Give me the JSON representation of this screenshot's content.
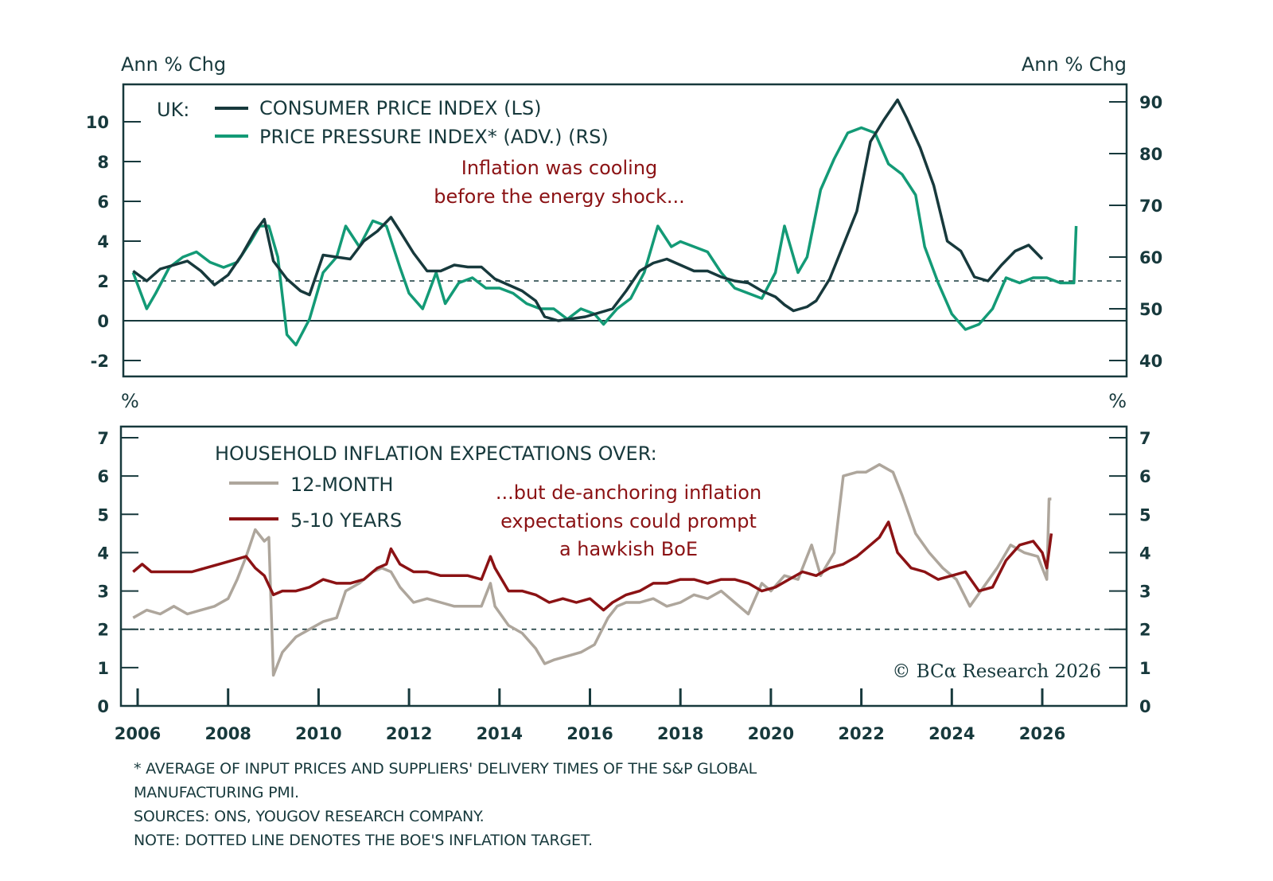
{
  "chart_data": [
    {
      "type": "line",
      "panel": "top",
      "left_axis_title": "Ann % Chg",
      "right_axis_title": "Ann % Chg",
      "left_ylim": [
        -3,
        11.5
      ],
      "right_ylim": [
        37,
        92
      ],
      "left_ticks": [
        -2,
        0,
        2,
        4,
        6,
        8,
        10
      ],
      "right_ticks": [
        40,
        50,
        60,
        70,
        80,
        90
      ],
      "reference_line": {
        "value": 2,
        "style": "dashed",
        "axis": "left"
      },
      "zero_line": {
        "value": 0,
        "axis": "left"
      },
      "legend_prefix": "UK:",
      "series": [
        {
          "name": "CONSUMER PRICE INDEX (LS)",
          "axis": "left",
          "color": "#17393c",
          "x": [
            2005.9,
            2006.2,
            2006.5,
            2006.8,
            2007.1,
            2007.4,
            2007.7,
            2008.0,
            2008.3,
            2008.6,
            2008.8,
            2009.0,
            2009.3,
            2009.6,
            2009.8,
            2010.1,
            2010.4,
            2010.7,
            2011.0,
            2011.3,
            2011.6,
            2011.8,
            2012.1,
            2012.4,
            2012.7,
            2013.0,
            2013.3,
            2013.6,
            2013.9,
            2014.2,
            2014.5,
            2014.8,
            2015.0,
            2015.3,
            2015.6,
            2015.9,
            2016.2,
            2016.5,
            2016.8,
            2017.1,
            2017.4,
            2017.7,
            2018.0,
            2018.3,
            2018.6,
            2018.9,
            2019.2,
            2019.5,
            2019.8,
            2020.1,
            2020.3,
            2020.5,
            2020.8,
            2021.0,
            2021.3,
            2021.6,
            2021.9,
            2022.2,
            2022.5,
            2022.8,
            2023.0,
            2023.3,
            2023.6,
            2023.9,
            2024.2,
            2024.5,
            2024.8,
            2025.1,
            2025.4,
            2025.7,
            2026.0
          ],
          "y": [
            2.5,
            2.0,
            2.6,
            2.8,
            3.0,
            2.5,
            1.8,
            2.3,
            3.3,
            4.5,
            5.1,
            3.0,
            2.1,
            1.5,
            1.3,
            3.3,
            3.2,
            3.1,
            4.0,
            4.5,
            5.2,
            4.5,
            3.4,
            2.5,
            2.5,
            2.8,
            2.7,
            2.7,
            2.1,
            1.8,
            1.5,
            1.0,
            0.2,
            0.0,
            0.1,
            0.2,
            0.4,
            0.6,
            1.5,
            2.5,
            2.9,
            3.1,
            2.8,
            2.5,
            2.5,
            2.2,
            2.0,
            1.9,
            1.5,
            1.2,
            0.8,
            0.5,
            0.7,
            1.0,
            2.1,
            3.8,
            5.5,
            9.0,
            10.1,
            11.1,
            10.2,
            8.7,
            6.8,
            4.0,
            3.5,
            2.2,
            2.0,
            2.8,
            3.5,
            3.8,
            3.1
          ]
        },
        {
          "name": "PRICE PRESSURE INDEX* (ADV.) (RS)",
          "axis": "right",
          "color": "#139a76",
          "x": [
            2005.9,
            2006.2,
            2006.4,
            2006.7,
            2007.0,
            2007.3,
            2007.6,
            2007.9,
            2008.2,
            2008.5,
            2008.7,
            2008.9,
            2009.1,
            2009.3,
            2009.5,
            2009.8,
            2010.1,
            2010.4,
            2010.6,
            2010.9,
            2011.2,
            2011.5,
            2011.8,
            2012.0,
            2012.3,
            2012.6,
            2012.8,
            2013.1,
            2013.4,
            2013.7,
            2014.0,
            2014.3,
            2014.6,
            2014.9,
            2015.2,
            2015.5,
            2015.8,
            2016.1,
            2016.3,
            2016.6,
            2016.9,
            2017.2,
            2017.5,
            2017.8,
            2018.0,
            2018.3,
            2018.6,
            2018.9,
            2019.2,
            2019.5,
            2019.8,
            2020.1,
            2020.3,
            2020.6,
            2020.8,
            2021.1,
            2021.4,
            2021.7,
            2022.0,
            2022.3,
            2022.6,
            2022.9,
            2023.2,
            2023.4,
            2023.7,
            2024.0,
            2024.3,
            2024.6,
            2024.9,
            2025.2,
            2025.5,
            2025.8,
            2026.1,
            2026.4,
            2026.7,
            2026.75
          ],
          "y": [
            57,
            50,
            53,
            58,
            60,
            61,
            59,
            58,
            59,
            63,
            66,
            66,
            60,
            45,
            43,
            48,
            57,
            60,
            66,
            62,
            67,
            66,
            58,
            53,
            50,
            57,
            51,
            55,
            56,
            54,
            54,
            53,
            51,
            50,
            50,
            48,
            50,
            49,
            47,
            50,
            52,
            57,
            66,
            62,
            63,
            62,
            61,
            57,
            54,
            53,
            52,
            57,
            66,
            57,
            60,
            73,
            79,
            84,
            85,
            84,
            78,
            76,
            72,
            62,
            55,
            49,
            46,
            47,
            50,
            56,
            55,
            56,
            56,
            55,
            55,
            66
          ]
        }
      ],
      "annotation": [
        "Inflation was cooling",
        "before the energy shock..."
      ]
    },
    {
      "type": "line",
      "panel": "bottom",
      "left_axis_title": "%",
      "right_axis_title": "%",
      "ylim": [
        0,
        7.3
      ],
      "ticks": [
        0,
        1,
        2,
        3,
        4,
        5,
        6,
        7
      ],
      "reference_line": {
        "value": 2,
        "style": "dashed"
      },
      "legend_title": "HOUSEHOLD INFLATION EXPECTATIONS OVER:",
      "series": [
        {
          "name": "12-MONTH",
          "color": "#aea69c",
          "x": [
            2005.9,
            2006.2,
            2006.5,
            2006.8,
            2007.1,
            2007.4,
            2007.7,
            2008.0,
            2008.2,
            2008.4,
            2008.6,
            2008.8,
            2008.9,
            2009.0,
            2009.2,
            2009.5,
            2009.8,
            2010.1,
            2010.4,
            2010.6,
            2010.9,
            2011.2,
            2011.4,
            2011.6,
            2011.8,
            2012.1,
            2012.4,
            2012.7,
            2013.0,
            2013.3,
            2013.6,
            2013.8,
            2013.9,
            2014.2,
            2014.5,
            2014.8,
            2015.0,
            2015.2,
            2015.5,
            2015.8,
            2016.1,
            2016.4,
            2016.6,
            2016.8,
            2017.1,
            2017.4,
            2017.7,
            2018.0,
            2018.3,
            2018.6,
            2018.9,
            2019.2,
            2019.5,
            2019.8,
            2020.0,
            2020.3,
            2020.6,
            2020.9,
            2021.1,
            2021.4,
            2021.6,
            2021.9,
            2022.1,
            2022.4,
            2022.7,
            2022.9,
            2023.2,
            2023.5,
            2023.8,
            2024.1,
            2024.4,
            2024.7,
            2025.0,
            2025.3,
            2025.6,
            2025.9,
            2026.1,
            2026.15,
            2026.2
          ],
          "y": [
            2.3,
            2.5,
            2.4,
            2.6,
            2.4,
            2.5,
            2.6,
            2.8,
            3.3,
            3.9,
            4.6,
            4.3,
            4.4,
            0.8,
            1.4,
            1.8,
            2.0,
            2.2,
            2.3,
            3.0,
            3.2,
            3.5,
            3.6,
            3.5,
            3.1,
            2.7,
            2.8,
            2.7,
            2.6,
            2.6,
            2.6,
            3.2,
            2.6,
            2.1,
            1.9,
            1.5,
            1.1,
            1.2,
            1.3,
            1.4,
            1.6,
            2.3,
            2.6,
            2.7,
            2.7,
            2.8,
            2.6,
            2.7,
            2.9,
            2.8,
            3.0,
            2.7,
            2.4,
            3.2,
            3.0,
            3.4,
            3.3,
            4.2,
            3.4,
            4.0,
            6.0,
            6.1,
            6.1,
            6.3,
            6.1,
            5.5,
            4.5,
            4.0,
            3.6,
            3.3,
            2.6,
            3.1,
            3.6,
            4.2,
            4.0,
            3.9,
            3.3,
            5.4,
            5.4
          ]
        },
        {
          "name": "5-10 YEARS",
          "color": "#8b1214",
          "x": [
            2005.9,
            2006.1,
            2006.3,
            2006.6,
            2006.9,
            2007.2,
            2007.5,
            2007.8,
            2008.1,
            2008.4,
            2008.6,
            2008.8,
            2009.0,
            2009.2,
            2009.5,
            2009.8,
            2010.1,
            2010.4,
            2010.7,
            2011.0,
            2011.3,
            2011.5,
            2011.6,
            2011.8,
            2012.1,
            2012.4,
            2012.7,
            2013.0,
            2013.3,
            2013.6,
            2013.8,
            2013.9,
            2014.2,
            2014.5,
            2014.8,
            2015.1,
            2015.4,
            2015.7,
            2016.0,
            2016.3,
            2016.5,
            2016.8,
            2017.1,
            2017.4,
            2017.7,
            2018.0,
            2018.3,
            2018.6,
            2018.9,
            2019.2,
            2019.5,
            2019.8,
            2020.1,
            2020.4,
            2020.7,
            2021.0,
            2021.3,
            2021.6,
            2021.9,
            2022.2,
            2022.4,
            2022.6,
            2022.8,
            2023.1,
            2023.4,
            2023.7,
            2024.0,
            2024.3,
            2024.6,
            2024.9,
            2025.2,
            2025.5,
            2025.8,
            2026.0,
            2026.1,
            2026.2
          ],
          "y": [
            3.5,
            3.7,
            3.5,
            3.5,
            3.5,
            3.5,
            3.6,
            3.7,
            3.8,
            3.9,
            3.6,
            3.4,
            2.9,
            3.0,
            3.0,
            3.1,
            3.3,
            3.2,
            3.2,
            3.3,
            3.6,
            3.7,
            4.1,
            3.7,
            3.5,
            3.5,
            3.4,
            3.4,
            3.4,
            3.3,
            3.9,
            3.6,
            3.0,
            3.0,
            2.9,
            2.7,
            2.8,
            2.7,
            2.8,
            2.5,
            2.7,
            2.9,
            3.0,
            3.2,
            3.2,
            3.3,
            3.3,
            3.2,
            3.3,
            3.3,
            3.2,
            3.0,
            3.1,
            3.3,
            3.5,
            3.4,
            3.6,
            3.7,
            3.9,
            4.2,
            4.4,
            4.8,
            4.0,
            3.6,
            3.5,
            3.3,
            3.4,
            3.5,
            3.0,
            3.1,
            3.8,
            4.2,
            4.3,
            4.0,
            3.6,
            4.5
          ]
        }
      ],
      "annotation": [
        "...but de-anchoring inflation",
        "expectations could prompt",
        "a hawkish BoE"
      ]
    }
  ],
  "x_axis": {
    "range": [
      2005.6,
      2027.8
    ],
    "ticks": [
      "2006",
      "2008",
      "2010",
      "2012",
      "2014",
      "2016",
      "2018",
      "2020",
      "2022",
      "2024",
      "2026"
    ]
  },
  "top": {
    "left_title": "Ann % Chg",
    "right_title": "Ann % Chg",
    "legend_prefix": "UK:",
    "legend_cpi": "CONSUMER PRICE INDEX (LS)",
    "legend_ppi": "PRICE PRESSURE INDEX* (ADV.) (RS)",
    "annotation_line1": "Inflation was cooling",
    "annotation_line2": "before the energy shock..."
  },
  "bottom": {
    "left_title": "%",
    "right_title": "%",
    "legend_title": "HOUSEHOLD INFLATION EXPECTATIONS OVER:",
    "legend_12m": "12-MONTH",
    "legend_5_10y": "5-10 YEARS",
    "annotation_line1": "...but de-anchoring inflation",
    "annotation_line2": "expectations could prompt",
    "annotation_line3": "a hawkish BoE",
    "copyright": "© BCα Research 2026"
  },
  "footnotes": {
    "line1": "* AVERAGE OF INPUT PRICES AND SUPPLIERS' DELIVERY TIMES OF THE S&P GLOBAL",
    "line2": "MANUFACTURING PMI.",
    "line3": "SOURCES: ONS, YOUGOV RESEARCH COMPANY.",
    "line4": "NOTE: DOTTED LINE DENOTES THE BOE'S INFLATION TARGET."
  },
  "colors": {
    "frame": "#17393c",
    "cpi": "#17393c",
    "ppi": "#139a76",
    "exp12m": "#aea69c",
    "exp510y": "#8b1214",
    "annotation": "#8b1214"
  }
}
